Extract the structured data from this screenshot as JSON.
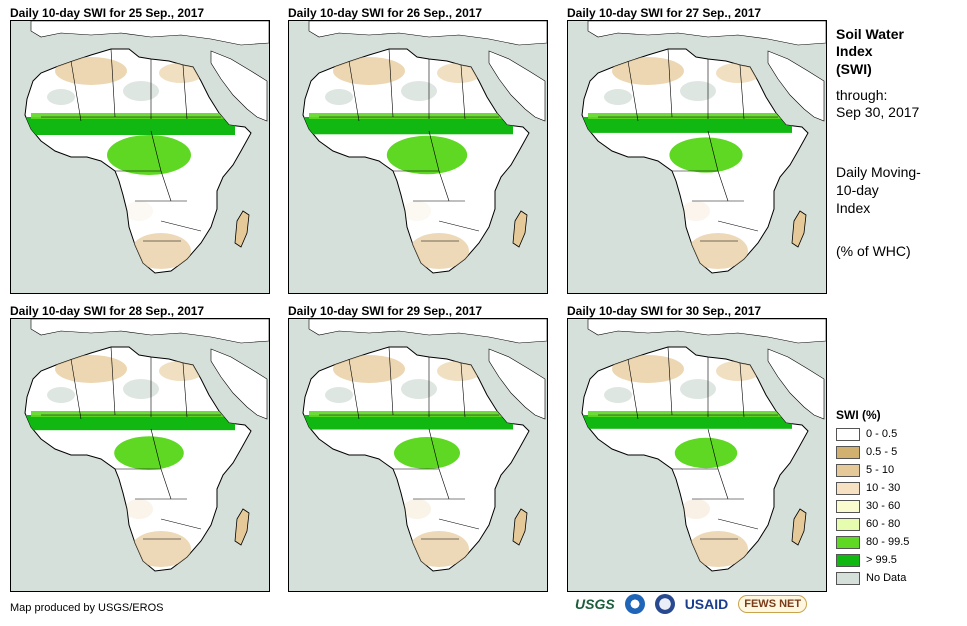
{
  "panels": [
    {
      "title": "Daily 10-day SWI for 25 Sep., 2017",
      "green_level": 1.0
    },
    {
      "title": "Daily 10-day SWI for 26 Sep., 2017",
      "green_level": 0.95
    },
    {
      "title": "Daily 10-day SWI for 27 Sep., 2017",
      "green_level": 0.85
    },
    {
      "title": "Daily 10-day SWI for 28 Sep., 2017",
      "green_level": 0.8
    },
    {
      "title": "Daily 10-day SWI for 29 Sep., 2017",
      "green_level": 0.75
    },
    {
      "title": "Daily 10-day SWI for 30 Sep., 2017",
      "green_level": 0.7
    }
  ],
  "sidebar": {
    "title_line1": "Soil Water",
    "title_line2": "Index",
    "title_line3": "(SWI)",
    "through_label": "through:",
    "through_date": "Sep 30, 2017",
    "desc_line1": "Daily Moving-",
    "desc_line2": "10-day",
    "desc_line3": "Index",
    "unit": "(% of WHC)"
  },
  "legend": {
    "title": "SWI (%)",
    "items": [
      {
        "label": "0 - 0.5",
        "color": "#ffffff"
      },
      {
        "label": "0.5 - 5",
        "color": "#d2b070"
      },
      {
        "label": "5 - 10",
        "color": "#e6c998"
      },
      {
        "label": "10 - 30",
        "color": "#f6e2c2"
      },
      {
        "label": "30 - 60",
        "color": "#fbfbd0"
      },
      {
        "label": "60 - 80",
        "color": "#e6fcae"
      },
      {
        "label": "80 - 99.5",
        "color": "#5ed822"
      },
      {
        "label": "> 99.5",
        "color": "#12b812"
      },
      {
        "label": "No Data",
        "color": "#d6e0da"
      }
    ]
  },
  "footer": {
    "credit": "Map produced by USGS/EROS",
    "logos": {
      "usgs": "USGS",
      "usaid": "USAID",
      "fews": "FEWS NET"
    }
  },
  "colors": {
    "land": "#ffffff",
    "water": "#d6e0da",
    "dry": "#e6c998",
    "dry2": "#d2b070",
    "wet": "#5ed822",
    "wettest": "#12b812"
  }
}
